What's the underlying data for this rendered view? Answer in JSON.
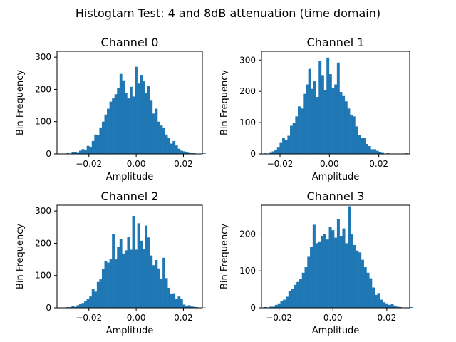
{
  "figure": {
    "title": "Histogtam Test: 4 and 8dB attenuation (time domain)"
  },
  "chart_data": [
    {
      "type": "bar",
      "title": "Channel 0",
      "xlabel": "Amplitude",
      "ylabel": "Bin Frequency",
      "xlim": [
        -0.0335,
        0.028
      ],
      "ylim": [
        0,
        318
      ],
      "xticks": [
        -0.02,
        0.0,
        0.02
      ],
      "xtick_labels": [
        "−0.02",
        "0.00",
        "0.02"
      ],
      "yticks": [
        0,
        100,
        200,
        300
      ],
      "ytick_labels": [
        "0",
        "100",
        "200",
        "300"
      ],
      "bin_start": -0.0295,
      "bin_width": 0.00107,
      "values": [
        2,
        0,
        5,
        6,
        3,
        10,
        15,
        12,
        25,
        22,
        40,
        60,
        58,
        82,
        100,
        122,
        140,
        162,
        172,
        185,
        205,
        248,
        228,
        190,
        172,
        208,
        178,
        270,
        218,
        245,
        225,
        188,
        212,
        165,
        125,
        140,
        100,
        88,
        82,
        60,
        50,
        32,
        40,
        26,
        16,
        10,
        8,
        5,
        3,
        2,
        2,
        1,
        1,
        1,
        2
      ]
    },
    {
      "type": "bar",
      "title": "Channel 1",
      "xlabel": "Amplitude",
      "ylabel": "Bin Frequency",
      "xlim": [
        -0.0275,
        0.0325
      ],
      "ylim": [
        0,
        328
      ],
      "xticks": [
        -0.02,
        0.0,
        0.02
      ],
      "xtick_labels": [
        "−0.02",
        "0.00",
        "0.02"
      ],
      "yticks": [
        0,
        100,
        200,
        300
      ],
      "ytick_labels": [
        "0",
        "100",
        "200",
        "300"
      ],
      "bin_start": -0.0265,
      "bin_width": 0.001055,
      "values": [
        2,
        0,
        3,
        8,
        12,
        20,
        35,
        50,
        45,
        58,
        90,
        100,
        120,
        152,
        145,
        192,
        222,
        272,
        208,
        232,
        182,
        298,
        252,
        205,
        308,
        255,
        212,
        222,
        292,
        198,
        185,
        168,
        145,
        125,
        120,
        88,
        60,
        52,
        50,
        32,
        25,
        15,
        15,
        10,
        5,
        3,
        1,
        2,
        0,
        0,
        0,
        0,
        0,
        0,
        2
      ]
    },
    {
      "type": "bar",
      "title": "Channel 2",
      "xlabel": "Amplitude",
      "ylabel": "Bin Frequency",
      "xlim": [
        -0.0335,
        0.028
      ],
      "ylim": [
        0,
        318
      ],
      "xticks": [
        -0.02,
        0.0,
        0.02
      ],
      "xtick_labels": [
        "−0.02",
        "0.00",
        "0.02"
      ],
      "yticks": [
        0,
        100,
        200,
        300
      ],
      "ytick_labels": [
        "0",
        "100",
        "200",
        "300"
      ],
      "bin_start": -0.0295,
      "bin_width": 0.00107,
      "values": [
        2,
        2,
        6,
        3,
        8,
        12,
        15,
        22,
        28,
        35,
        58,
        50,
        80,
        88,
        120,
        145,
        140,
        150,
        228,
        150,
        190,
        212,
        168,
        178,
        220,
        180,
        285,
        180,
        262,
        208,
        182,
        255,
        218,
        162,
        132,
        148,
        122,
        90,
        155,
        92,
        62,
        42,
        45,
        28,
        35,
        28,
        10,
        6,
        8,
        4,
        3,
        2,
        0,
        0,
        1
      ]
    },
    {
      "type": "bar",
      "title": "Channel 3",
      "xlabel": "Amplitude",
      "ylabel": "Bin Frequency",
      "xlim": [
        -0.0265,
        0.0285
      ],
      "ylim": [
        0,
        278
      ],
      "xticks": [
        -0.02,
        0.0,
        0.02
      ],
      "xtick_labels": [
        "−0.02",
        "0.00",
        "0.02"
      ],
      "yticks": [
        0,
        100,
        200,
        300
      ],
      "ytick_labels": [
        "0",
        "100",
        "200"
      ],
      "bin_start": -0.0255,
      "bin_width": 0.001,
      "values": [
        2,
        0,
        3,
        3,
        8,
        12,
        18,
        22,
        30,
        45,
        52,
        62,
        70,
        78,
        95,
        110,
        140,
        165,
        225,
        175,
        180,
        195,
        200,
        185,
        220,
        210,
        190,
        240,
        195,
        215,
        175,
        275,
        200,
        170,
        155,
        150,
        130,
        110,
        95,
        80,
        55,
        35,
        40,
        22,
        15,
        12,
        8,
        10,
        6,
        3,
        2,
        1,
        1,
        1,
        2
      ]
    }
  ]
}
